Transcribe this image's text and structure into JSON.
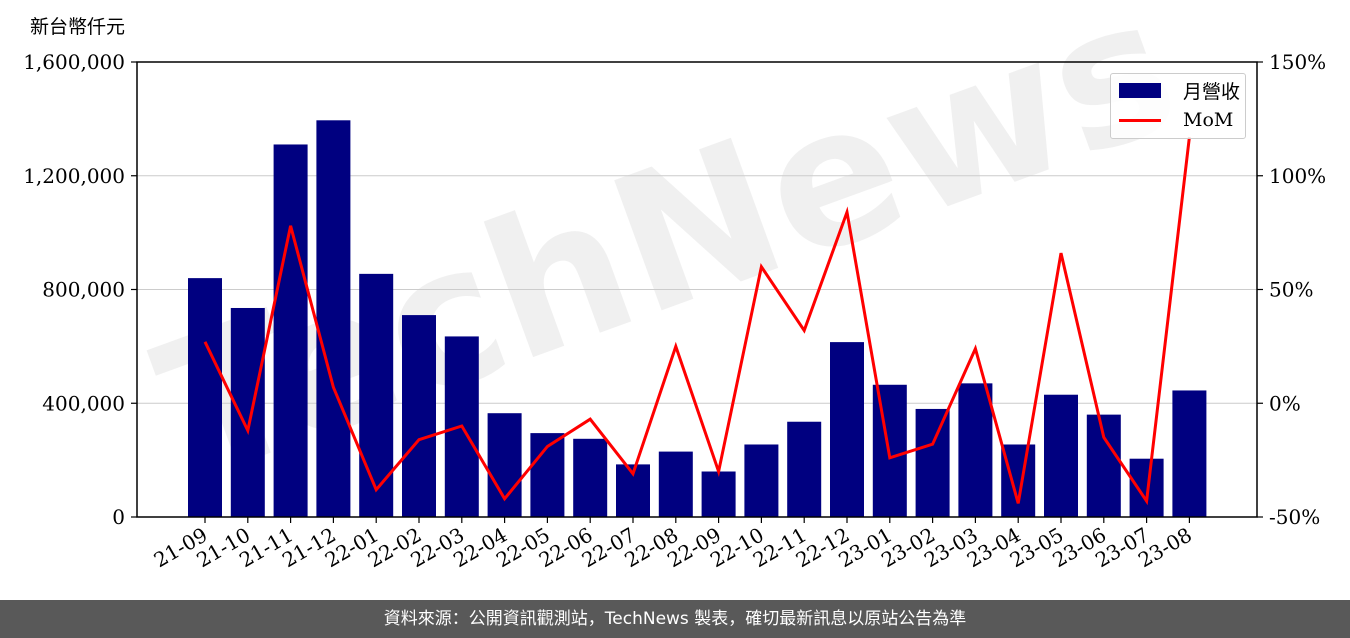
{
  "unit_label": "新台幣仟元",
  "footer_text": "資料來源：公開資訊觀測站，TechNews 製表，確切最新訊息以原站公告為準",
  "watermark": "TechNews",
  "legend": {
    "bar_label": "月營收",
    "line_label": "MoM"
  },
  "colors": {
    "bar": "#000080",
    "line": "#ff0000",
    "grid": "#cccccc",
    "footer_bg": "#595959"
  },
  "chart_data": {
    "type": "bar",
    "categories": [
      "21-09",
      "21-10",
      "21-11",
      "21-12",
      "22-01",
      "22-02",
      "22-03",
      "22-04",
      "22-05",
      "22-06",
      "22-07",
      "22-08",
      "22-09",
      "22-10",
      "22-11",
      "22-12",
      "23-01",
      "23-02",
      "23-03",
      "23-04",
      "23-05",
      "23-06",
      "23-07",
      "23-08"
    ],
    "series": [
      {
        "name": "月營收",
        "type": "bar",
        "axis": "left",
        "values": [
          840000,
          735000,
          1310000,
          1395000,
          855000,
          710000,
          635000,
          365000,
          295000,
          275000,
          185000,
          230000,
          160000,
          255000,
          335000,
          615000,
          465000,
          380000,
          470000,
          255000,
          430000,
          360000,
          205000,
          445000
        ]
      },
      {
        "name": "MoM",
        "type": "line",
        "axis": "right",
        "values": [
          27,
          -12,
          78,
          7,
          -38,
          -16,
          -10,
          -42,
          -19,
          -7,
          -31,
          25,
          -30,
          60,
          32,
          84,
          -24,
          -18,
          24,
          -44,
          66,
          -15,
          -43,
          117
        ]
      }
    ],
    "y_left": {
      "lim": [
        0,
        1600000
      ],
      "ticks": [
        0,
        400000,
        800000,
        1200000,
        1600000
      ],
      "tick_labels": [
        "0",
        "400,000",
        "800,000",
        "1,200,000",
        "1,600,000"
      ]
    },
    "y_right": {
      "lim": [
        -50,
        150
      ],
      "ticks": [
        -50,
        0,
        50,
        100,
        150
      ],
      "tick_labels": [
        "-50%",
        "0%",
        "50%",
        "100%",
        "150%"
      ]
    },
    "grid": true,
    "legend_position": "top-right"
  }
}
